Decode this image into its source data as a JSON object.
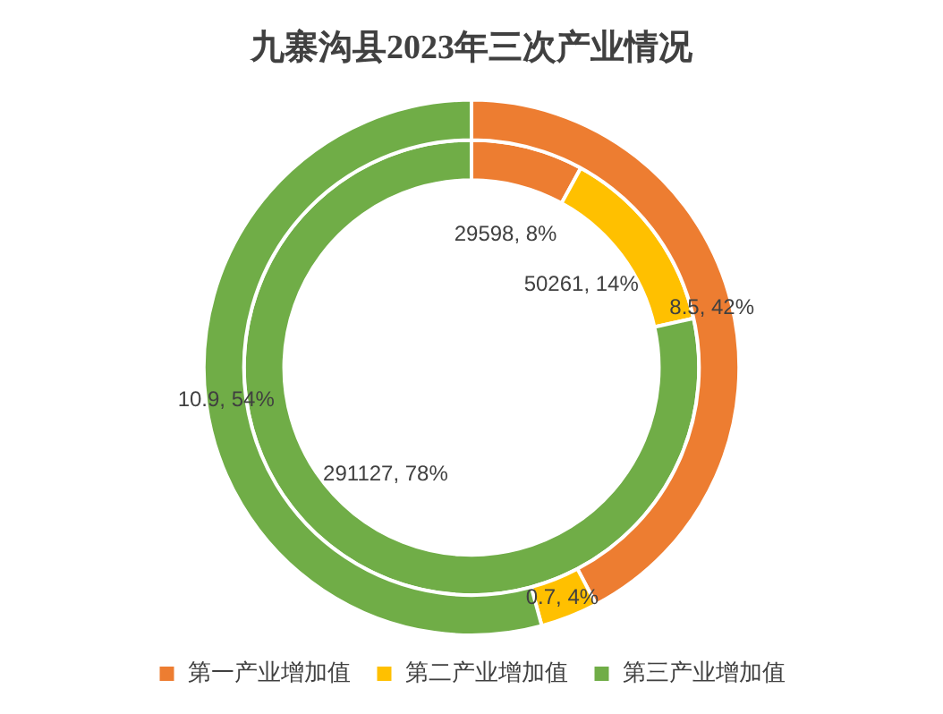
{
  "chart_data": {
    "type": "donut",
    "title": "九寨沟县2023年三次产业情况",
    "categories": [
      "第一产业增加值",
      "第二产业增加值",
      "第三产业增加值"
    ],
    "colors": [
      "#ed7d31",
      "#ffc000",
      "#70ad47"
    ],
    "series": [
      {
        "values": [
          29598,
          50261,
          291127
        ],
        "value_labels": [
          "29598, 8%",
          "50261, 14%",
          "291127, 78%"
        ]
      },
      {
        "values": [
          8.5,
          0.7,
          10.9
        ],
        "value_labels": [
          "8.5, 42%",
          "0.7, 4%",
          "10.9, 54%"
        ]
      }
    ],
    "legend": "bottom"
  }
}
